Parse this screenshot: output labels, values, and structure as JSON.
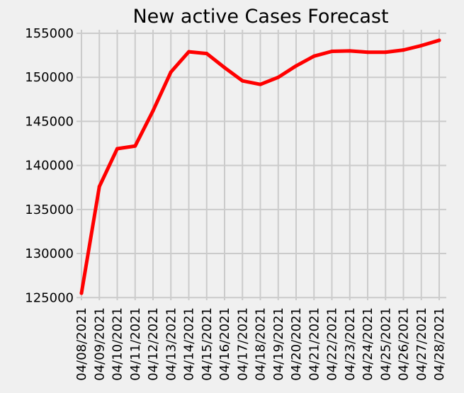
{
  "chart_data": {
    "type": "line",
    "title": "New active Cases Forecast",
    "xlabel": "",
    "ylabel": "",
    "categories": [
      "04/08/2021",
      "04/09/2021",
      "04/10/2021",
      "04/11/2021",
      "04/12/2021",
      "04/13/2021",
      "04/14/2021",
      "04/15/2021",
      "04/16/2021",
      "04/17/2021",
      "04/18/2021",
      "04/19/2021",
      "04/20/2021",
      "04/21/2021",
      "04/22/2021",
      "04/23/2021",
      "04/24/2021",
      "04/25/2021",
      "04/26/2021",
      "04/27/2021",
      "04/28/2021"
    ],
    "series": [
      {
        "values": [
          125500,
          137600,
          141900,
          142200,
          146200,
          150600,
          152900,
          152700,
          151100,
          149600,
          149200,
          150000,
          151300,
          152400,
          152950,
          153000,
          152850,
          152850,
          153100,
          153600,
          154200
        ]
      }
    ],
    "ylim": [
      124700,
      155400
    ],
    "yticks": [
      125000,
      130000,
      135000,
      140000,
      145000,
      150000,
      155000
    ],
    "grid": true,
    "legend": "none",
    "colors": {
      "line": "#ff0000",
      "background": "#f0f0f0",
      "grid": "#cbcbcb"
    }
  }
}
